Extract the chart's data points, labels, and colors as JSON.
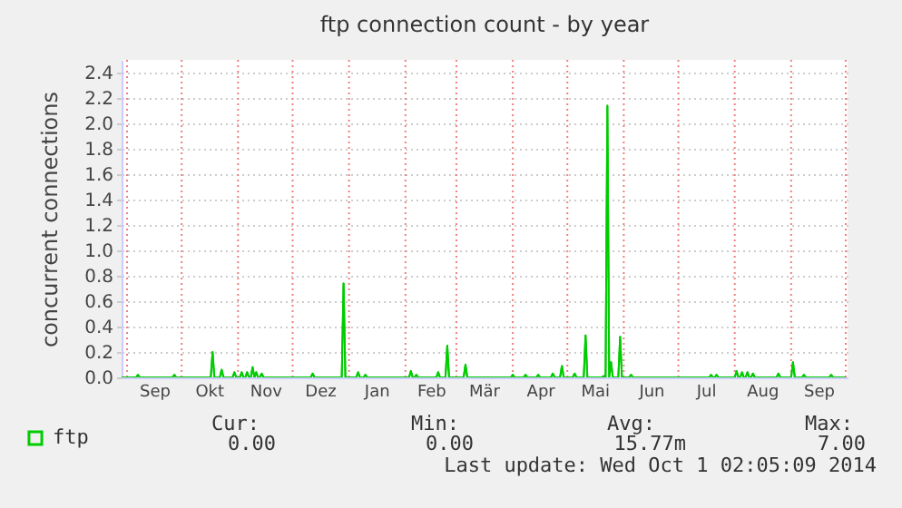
{
  "chart_data": {
    "type": "line",
    "title": "ftp connection count - by year",
    "ylabel": "concurrent connections",
    "xlim": [
      "2013-08-29",
      "2014-10-02"
    ],
    "ylim": [
      0,
      2.5
    ],
    "yticks": [
      {
        "value": 0,
        "label": "0.0"
      },
      {
        "value": 0.2,
        "label": "0.2"
      },
      {
        "value": 0.4,
        "label": "0.4"
      },
      {
        "value": 0.6,
        "label": "0.6"
      },
      {
        "value": 0.8,
        "label": "0.8"
      },
      {
        "value": 1,
        "label": "1.0"
      },
      {
        "value": 1.2,
        "label": "1.2"
      },
      {
        "value": 1.4,
        "label": "1.4"
      },
      {
        "value": 1.6,
        "label": "1.6"
      },
      {
        "value": 1.8,
        "label": "1.8"
      },
      {
        "value": 2,
        "label": "2.0"
      },
      {
        "value": 2.2,
        "label": "2.2"
      },
      {
        "value": 2.4,
        "label": "2.4"
      }
    ],
    "xticks": [
      {
        "value": "2013-09-01",
        "label": null
      },
      {
        "value": "2013-10-01",
        "label": null
      },
      {
        "value": "2013-11-01",
        "label": null
      },
      {
        "value": "2013-12-01",
        "label": null
      },
      {
        "value": "2014-01-01",
        "label": null
      },
      {
        "value": "2014-02-01",
        "label": null
      },
      {
        "value": "2014-03-01",
        "label": null
      },
      {
        "value": "2014-04-01",
        "label": null
      },
      {
        "value": "2014-05-01",
        "label": null
      },
      {
        "value": "2014-06-01",
        "label": null
      },
      {
        "value": "2014-07-01",
        "label": null
      },
      {
        "value": "2014-08-01",
        "label": null
      },
      {
        "value": "2014-09-01",
        "label": null
      },
      {
        "value": "2014-10-01",
        "label": null
      },
      {
        "value": "2013-09-16",
        "label": "Sep"
      },
      {
        "value": "2013-10-16",
        "label": "Okt"
      },
      {
        "value": "2013-11-16",
        "label": "Nov"
      },
      {
        "value": "2013-12-16",
        "label": "Dez"
      },
      {
        "value": "2014-01-16",
        "label": "Jan"
      },
      {
        "value": "2014-02-15",
        "label": "Feb"
      },
      {
        "value": "2014-03-16",
        "label": "Mär"
      },
      {
        "value": "2014-04-16",
        "label": "Apr"
      },
      {
        "value": "2014-05-16",
        "label": "Mai"
      },
      {
        "value": "2014-06-16",
        "label": "Jun"
      },
      {
        "value": "2014-07-16",
        "label": "Jul"
      },
      {
        "value": "2014-08-16",
        "label": "Aug"
      },
      {
        "value": "2014-09-16",
        "label": "Sep"
      }
    ],
    "grid": true,
    "legend": "bottom left",
    "marker": "none",
    "line_style": "solid",
    "series": [
      {
        "name": "ftp",
        "color": "#00cc00",
        "x": [
          "2013-08-29",
          "2013-09-06",
          "2013-09-07",
          "2013-09-08",
          "2013-09-26",
          "2013-09-27",
          "2013-09-28",
          "2013-10-17",
          "2013-10-18",
          "2013-10-19",
          "2013-10-22",
          "2013-10-23",
          "2013-10-24",
          "2013-10-29",
          "2013-10-30",
          "2013-10-31",
          "2013-11-02",
          "2013-11-03",
          "2013-11-04",
          "2013-11-05",
          "2013-11-06",
          "2013-11-07",
          "2013-11-08",
          "2013-11-09",
          "2013-11-10",
          "2013-11-11",
          "2013-11-12",
          "2013-11-13",
          "2013-11-14",
          "2013-11-15",
          "2013-12-11",
          "2013-12-12",
          "2013-12-13",
          "2013-12-28",
          "2013-12-29",
          "2013-12-30",
          "2014-01-05",
          "2014-01-06",
          "2014-01-07",
          "2014-01-09",
          "2014-01-10",
          "2014-01-11",
          "2014-02-03",
          "2014-02-04",
          "2014-02-05",
          "2014-02-06",
          "2014-02-07",
          "2014-02-08",
          "2014-02-18",
          "2014-02-19",
          "2014-02-20",
          "2014-02-23",
          "2014-02-24",
          "2014-02-25",
          "2014-03-05",
          "2014-03-06",
          "2014-03-07",
          "2014-03-31",
          "2014-04-01",
          "2014-04-02",
          "2014-04-07",
          "2014-04-08",
          "2014-04-09",
          "2014-04-14",
          "2014-04-15",
          "2014-04-16",
          "2014-04-22",
          "2014-04-23",
          "2014-04-24",
          "2014-04-27",
          "2014-04-28",
          "2014-04-29",
          "2014-05-04",
          "2014-05-05",
          "2014-05-06",
          "2014-05-10",
          "2014-05-11",
          "2014-05-12",
          "2014-05-20",
          "2014-05-21",
          "2014-05-22",
          "2014-05-23",
          "2014-05-24",
          "2014-05-25",
          "2014-05-26",
          "2014-05-29",
          "2014-05-30",
          "2014-05-31",
          "2014-06-04",
          "2014-06-05",
          "2014-06-06",
          "2014-07-18",
          "2014-07-19",
          "2014-07-20",
          "2014-07-21",
          "2014-07-22",
          "2014-07-23",
          "2014-08-01",
          "2014-08-02",
          "2014-08-03",
          "2014-08-04",
          "2014-08-05",
          "2014-08-06",
          "2014-08-07",
          "2014-08-08",
          "2014-08-09",
          "2014-08-10",
          "2014-08-11",
          "2014-08-12",
          "2014-08-24",
          "2014-08-25",
          "2014-08-26",
          "2014-09-01",
          "2014-09-02",
          "2014-09-03",
          "2014-09-07",
          "2014-09-08",
          "2014-09-09",
          "2014-09-22",
          "2014-09-23",
          "2014-09-24",
          "2014-10-01"
        ],
        "values": [
          0,
          0,
          0.02,
          0,
          0,
          0.02,
          0,
          0,
          0.2,
          0,
          0,
          0.06,
          0,
          0,
          0.04,
          0,
          0,
          0.04,
          0,
          0,
          0.04,
          0,
          0,
          0.08,
          0,
          0.04,
          0,
          0,
          0.03,
          0,
          0,
          0.03,
          0,
          0,
          0.74,
          0,
          0,
          0.04,
          0,
          0,
          0.02,
          0,
          0,
          0.05,
          0,
          0,
          0.02,
          0,
          0,
          0.04,
          0,
          0,
          0.25,
          0,
          0,
          0.1,
          0,
          0,
          0.02,
          0,
          0,
          0.02,
          0,
          0,
          0.02,
          0,
          0,
          0.03,
          0,
          0,
          0.09,
          0,
          0,
          0.03,
          0,
          0,
          0.33,
          0,
          0,
          0.01,
          0,
          2.14,
          0,
          0.12,
          0,
          0,
          0.32,
          0,
          0,
          0.02,
          0,
          0,
          0.02,
          0,
          0,
          0.02,
          0,
          0,
          0.05,
          0,
          0,
          0.04,
          0,
          0,
          0.04,
          0,
          0,
          0.03,
          0,
          0,
          0.03,
          0,
          0,
          0.12,
          0,
          0,
          0.02,
          0,
          0,
          0.02,
          0,
          0
        ]
      }
    ],
    "annotations": [
      "Cur:",
      "Min:",
      "Avg:",
      "Max:",
      "0.00",
      "0.00",
      "15.77m",
      "7.00",
      "Last update: Wed Oct  1 02:05:09 2014"
    ]
  }
}
